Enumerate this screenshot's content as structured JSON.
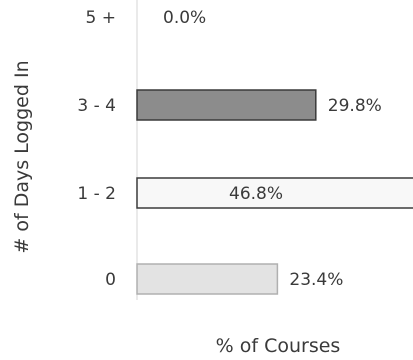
{
  "chart_data": {
    "type": "bar",
    "orientation": "horizontal",
    "categories": [
      "5 +",
      "3 - 4",
      "1 - 2",
      "0"
    ],
    "values": [
      0.0,
      29.8,
      46.8,
      23.4
    ],
    "value_labels": [
      "0.0%",
      "29.8%",
      "46.8%",
      "23.4%"
    ],
    "xlabel": "% of Courses",
    "ylabel": "# of Days Logged In",
    "xlim": [
      0,
      100
    ],
    "grid": false,
    "legend": "none",
    "colors": {
      "bar_gray": "#8c8c8c",
      "bar_white": "#f8f8f8",
      "bar_light": "#e3e3e3",
      "outline": "#3a3a3a",
      "text": "#3a3a3a"
    }
  }
}
